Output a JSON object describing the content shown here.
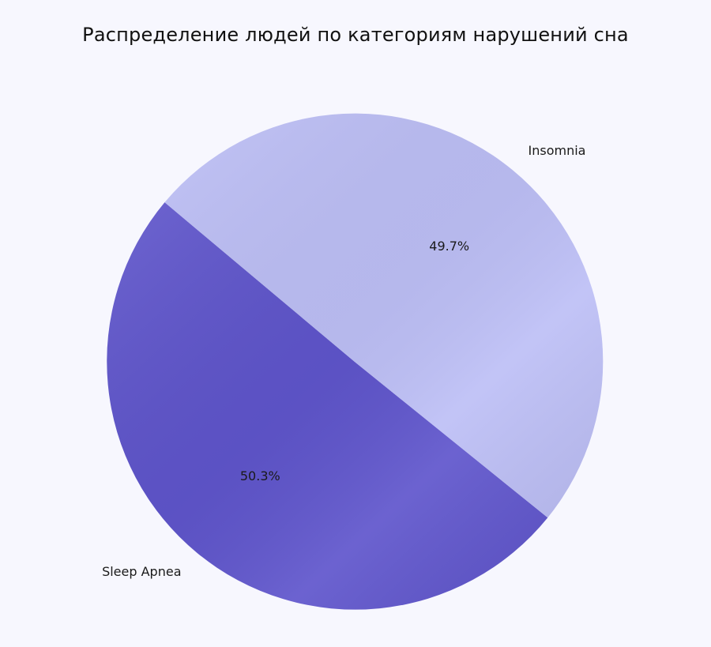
{
  "chart_data": {
    "type": "pie",
    "title": "Распределение людей по категориям нарушений сна",
    "slices": [
      {
        "label": "Sleep Apnea",
        "value": 50.3,
        "pct_label": "50.3%",
        "color": "#5f55cc"
      },
      {
        "label": "Insomnia",
        "value": 49.7,
        "pct_label": "49.7%",
        "color": "#bdbff6"
      }
    ],
    "start_angle_deg": 140,
    "direction": "counterclockwise"
  },
  "background_color": "#f7f7fe"
}
